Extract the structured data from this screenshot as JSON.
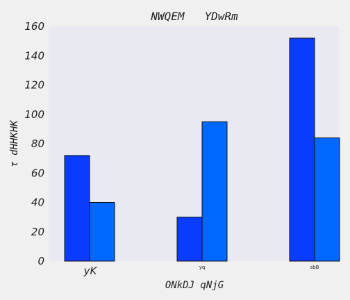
{
  "chart_data": {
    "type": "bar",
    "title": "NWQEM   YDwRm",
    "xlabel": "ONkDJ qNjG",
    "ylabel": "τ dHHKHK",
    "categories": [
      "yK",
      "yq",
      "sbB"
    ],
    "category_label_sizes": [
      15,
      7,
      7
    ],
    "series": [
      {
        "values": [
          72,
          30,
          152
        ],
        "color": "#0a3cff"
      },
      {
        "values": [
          40,
          95,
          84
        ],
        "color": "#0068ff"
      }
    ],
    "ylim": [
      0,
      160
    ],
    "yticks": [
      0,
      20,
      40,
      60,
      80,
      100,
      120,
      140,
      160
    ],
    "grid": false,
    "legend": "none",
    "plot_background": "#e9e9f2"
  }
}
